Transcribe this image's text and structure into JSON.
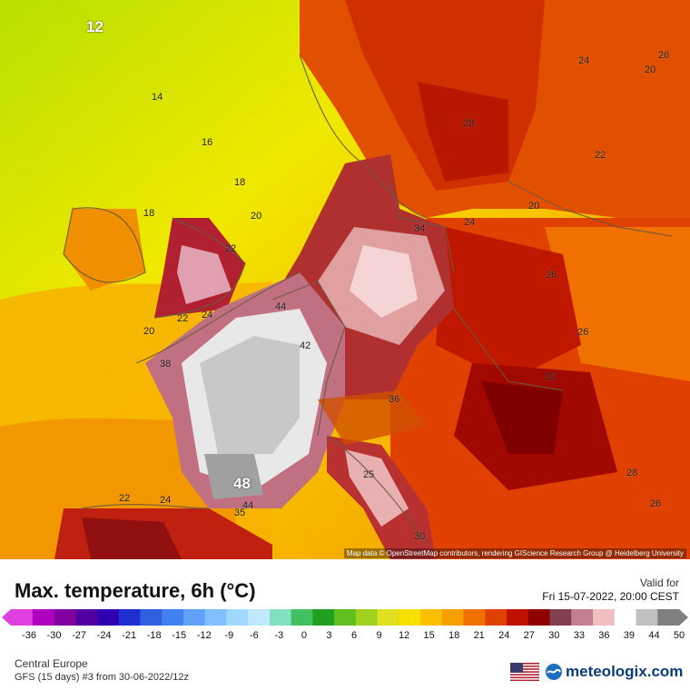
{
  "map": {
    "labels": [
      "12",
      "14",
      "16",
      "18",
      "18",
      "20",
      "22",
      "20",
      "22",
      "24",
      "20",
      "28",
      "22",
      "20",
      "24",
      "26",
      "24",
      "22",
      "26",
      "28",
      "26",
      "34",
      "44",
      "42",
      "36",
      "38",
      "48",
      "44",
      "35",
      "22",
      "24",
      "25",
      "26",
      "30"
    ],
    "attribution": "Map data © OpenStreetMap contributors, rendering GIScience Research Group @ Heidelberg University"
  },
  "legend": {
    "title": "Max. temperature, 6h (°C)",
    "valid_label": "Valid for",
    "valid_date": "Fri 15-07-2022, 20:00 CEST",
    "ticks": [
      "-36",
      "-30",
      "-27",
      "-24",
      "-21",
      "-18",
      "-15",
      "-12",
      "-9",
      "-6",
      "-3",
      "0",
      "3",
      "6",
      "9",
      "12",
      "15",
      "18",
      "21",
      "24",
      "27",
      "30",
      "33",
      "36",
      "39",
      "44",
      "50"
    ],
    "colors": [
      "#e040e0",
      "#b000c0",
      "#8000a0",
      "#5000a0",
      "#3000b0",
      "#2030d0",
      "#3060e0",
      "#4080f0",
      "#60a0f8",
      "#80c0ff",
      "#a0d8ff",
      "#c0e8ff",
      "#80e0c0",
      "#40c060",
      "#20a020",
      "#60c020",
      "#a0d020",
      "#e0e020",
      "#f8e000",
      "#f8c000",
      "#f8a000",
      "#f07000",
      "#e04000",
      "#c01000",
      "#900000",
      "#804050",
      "#c08090",
      "#f0c0c0",
      "#ffffff",
      "#c0c0c0",
      "#808080"
    ]
  },
  "footer": {
    "region": "Central Europe",
    "model": "GFS (15 days) #3 from 30-06-2022/12z",
    "brand": "meteologix.com"
  }
}
